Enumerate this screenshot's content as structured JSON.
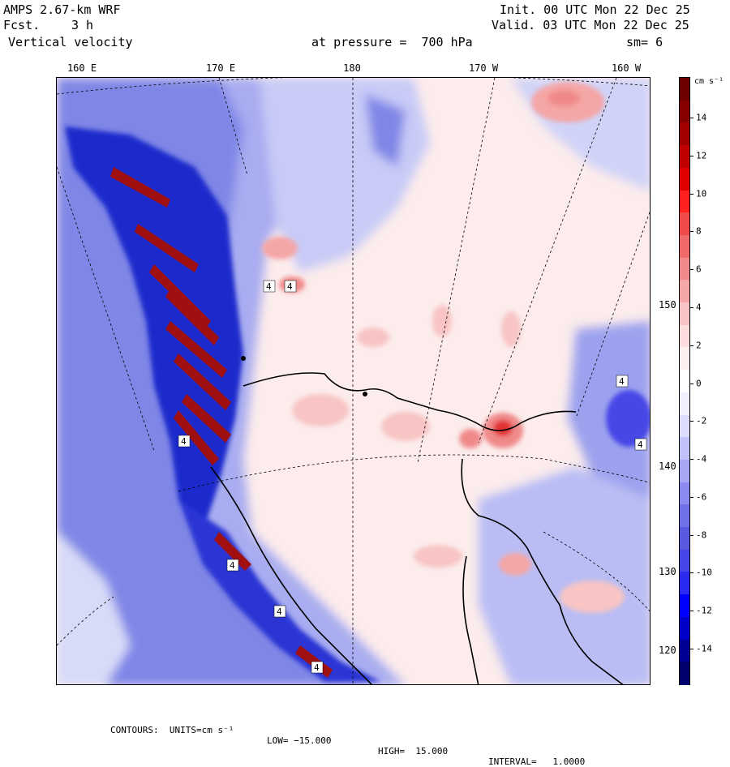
{
  "header": {
    "model": "AMPS 2.67-km WRF",
    "fcst_label": "Fcst.",
    "fcst_value": "3 h",
    "field": "Vertical velocity",
    "init": "Init. 00 UTC Mon 22 Dec 25",
    "valid": "Valid. 03 UTC Mon 22 Dec 25",
    "pressure": "at pressure =  700 hPa",
    "smoothing": "sm= 6"
  },
  "longitude_labels": [
    "160 E",
    "170 E",
    "180",
    "170 W",
    "160 W"
  ],
  "latitude_labels": [
    "150 W",
    "140 W",
    "130 W",
    "120 W"
  ],
  "colorbar": {
    "units_label": "cm s⁻¹",
    "ticks": [
      "14",
      "12",
      "10",
      "8",
      "6",
      "4",
      "2",
      "0",
      "-2",
      "-4",
      "-6",
      "-8",
      "-10",
      "-12",
      "-14"
    ],
    "colors": [
      "#00006e",
      "#000096",
      "#0000c8",
      "#0000ff",
      "#2a2af0",
      "#4646e6",
      "#5a5ae0",
      "#7070e8",
      "#8a8af0",
      "#a6a6f5",
      "#c2c2fa",
      "#dcdcfc",
      "#f0f0ff",
      "#ffffff",
      "#fff0f0",
      "#fcdcdc",
      "#f8c4c4",
      "#f5a6a6",
      "#f08a8a",
      "#f06a6a",
      "#f04a4a",
      "#ff2020",
      "#e00000",
      "#c00000",
      "#a00000",
      "#860000",
      "#6e0000"
    ]
  },
  "footer": {
    "contours": "CONTOURS:  UNITS=cm s⁻¹",
    "low": "LOW= −15.000",
    "high": "HIGH=  15.000",
    "interval": "INTERVAL=   1.0000"
  },
  "map_markers": {
    "max_label": "4"
  }
}
